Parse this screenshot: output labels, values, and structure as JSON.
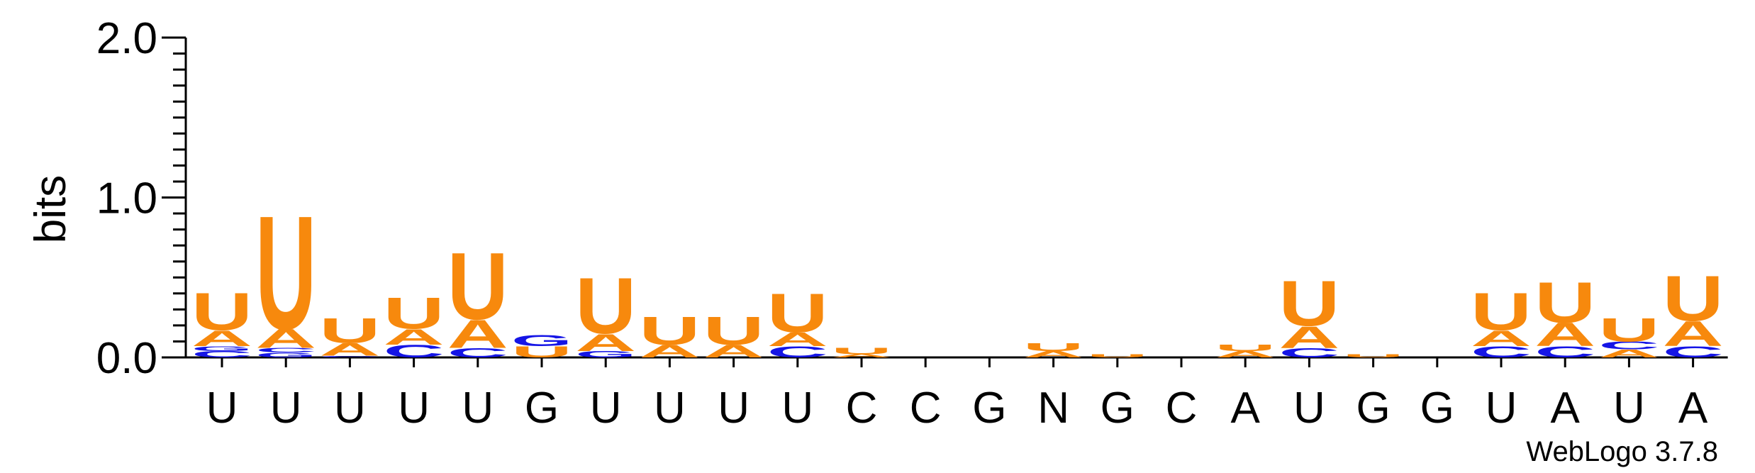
{
  "chart_data": {
    "type": "sequence-logo",
    "ylabel": "bits",
    "ylim": [
      0,
      2.0
    ],
    "yticks": [
      "0.0",
      "1.0",
      "2.0"
    ],
    "grid": false,
    "colors": {
      "U": "#f7890d",
      "A": "#f7890d",
      "C": "#1515e6",
      "G": "#1515e6"
    },
    "positions": [
      {
        "label": "U",
        "stack": [
          {
            "letter": "C",
            "bits": 0.04
          },
          {
            "letter": "G",
            "bits": 0.03
          },
          {
            "letter": "A",
            "bits": 0.1
          },
          {
            "letter": "U",
            "bits": 0.24
          }
        ]
      },
      {
        "label": "U",
        "stack": [
          {
            "letter": "G",
            "bits": 0.03
          },
          {
            "letter": "C",
            "bits": 0.03
          },
          {
            "letter": "A",
            "bits": 0.12
          },
          {
            "letter": "U",
            "bits": 0.73
          }
        ]
      },
      {
        "label": "U",
        "stack": [
          {
            "letter": "C",
            "bits": 0.01
          },
          {
            "letter": "A",
            "bits": 0.08
          },
          {
            "letter": "U",
            "bits": 0.16
          }
        ]
      },
      {
        "label": "U",
        "stack": [
          {
            "letter": "C",
            "bits": 0.08
          },
          {
            "letter": "A",
            "bits": 0.1
          },
          {
            "letter": "U",
            "bits": 0.2
          }
        ]
      },
      {
        "label": "U",
        "stack": [
          {
            "letter": "C",
            "bits": 0.06
          },
          {
            "letter": "A",
            "bits": 0.18
          },
          {
            "letter": "U",
            "bits": 0.43
          }
        ]
      },
      {
        "label": "G",
        "stack": [
          {
            "letter": "U",
            "bits": 0.07
          },
          {
            "letter": "G",
            "bits": 0.07
          }
        ]
      },
      {
        "label": "U",
        "stack": [
          {
            "letter": "G",
            "bits": 0.04
          },
          {
            "letter": "A",
            "bits": 0.11
          },
          {
            "letter": "U",
            "bits": 0.36
          }
        ]
      },
      {
        "label": "U",
        "stack": [
          {
            "letter": "A",
            "bits": 0.08
          },
          {
            "letter": "U",
            "bits": 0.18
          }
        ]
      },
      {
        "label": "U",
        "stack": [
          {
            "letter": "A",
            "bits": 0.08
          },
          {
            "letter": "U",
            "bits": 0.18
          }
        ]
      },
      {
        "label": "U",
        "stack": [
          {
            "letter": "C",
            "bits": 0.07
          },
          {
            "letter": "A",
            "bits": 0.09
          },
          {
            "letter": "U",
            "bits": 0.25
          }
        ]
      },
      {
        "label": "C",
        "stack": [
          {
            "letter": "A",
            "bits": 0.02
          },
          {
            "letter": "U",
            "bits": 0.04
          }
        ]
      },
      {
        "label": "C",
        "stack": []
      },
      {
        "label": "G",
        "stack": []
      },
      {
        "label": "N",
        "stack": [
          {
            "letter": "A",
            "bits": 0.04
          },
          {
            "letter": "U",
            "bits": 0.05
          }
        ]
      },
      {
        "label": "G",
        "stack": [
          {
            "letter": "U",
            "bits": 0.02
          }
        ]
      },
      {
        "label": "C",
        "stack": []
      },
      {
        "label": "A",
        "stack": [
          {
            "letter": "A",
            "bits": 0.04
          },
          {
            "letter": "U",
            "bits": 0.04
          }
        ]
      },
      {
        "label": "U",
        "stack": [
          {
            "letter": "C",
            "bits": 0.06
          },
          {
            "letter": "A",
            "bits": 0.14
          },
          {
            "letter": "U",
            "bits": 0.29
          }
        ]
      },
      {
        "label": "G",
        "stack": [
          {
            "letter": "U",
            "bits": 0.02
          }
        ]
      },
      {
        "label": "G",
        "stack": []
      },
      {
        "label": "U",
        "stack": [
          {
            "letter": "C",
            "bits": 0.07
          },
          {
            "letter": "A",
            "bits": 0.1
          },
          {
            "letter": "U",
            "bits": 0.24
          }
        ]
      },
      {
        "label": "A",
        "stack": [
          {
            "letter": "C",
            "bits": 0.07
          },
          {
            "letter": "A",
            "bits": 0.15
          },
          {
            "letter": "U",
            "bits": 0.26
          }
        ]
      },
      {
        "label": "U",
        "stack": [
          {
            "letter": "A",
            "bits": 0.05
          },
          {
            "letter": "C",
            "bits": 0.05
          },
          {
            "letter": "U",
            "bits": 0.15
          }
        ]
      },
      {
        "label": "A",
        "stack": [
          {
            "letter": "C",
            "bits": 0.07
          },
          {
            "letter": "A",
            "bits": 0.16
          },
          {
            "letter": "U",
            "bits": 0.29
          }
        ]
      }
    ]
  },
  "footer": {
    "credit": "WebLogo 3.7.8"
  }
}
